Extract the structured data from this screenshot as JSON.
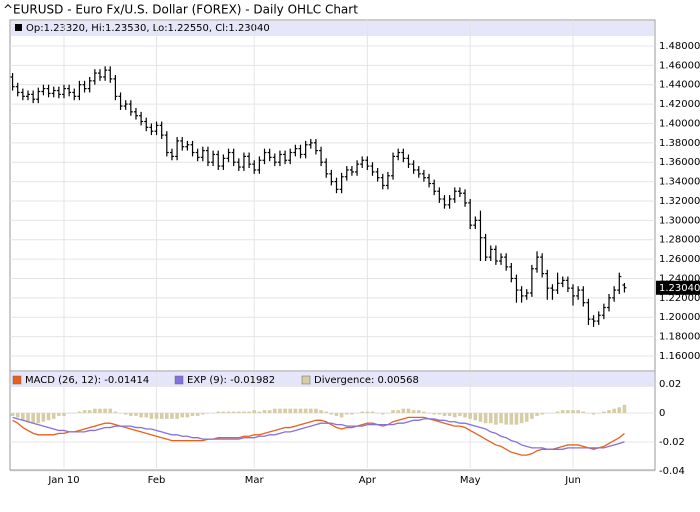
{
  "chart_data": [
    {
      "type": "ohlc",
      "title": "^EURUSD - Euro Fx/U.S. Dollar (FOREX) - Daily OHLC Chart",
      "legend": "Op:1.23320, Hi:1.23530, Lo:1.22550, Cl:1.23040",
      "color": "#000000",
      "grid": true,
      "categories": [
        null,
        null,
        null,
        null,
        null,
        null,
        null,
        null,
        null,
        null,
        "Jan 10",
        null,
        null,
        null,
        null,
        null,
        null,
        null,
        null,
        null,
        null,
        null,
        null,
        null,
        null,
        null,
        null,
        null,
        "Feb",
        null,
        null,
        null,
        null,
        null,
        null,
        null,
        null,
        null,
        null,
        null,
        null,
        null,
        null,
        null,
        null,
        null,
        null,
        "Mar",
        null,
        null,
        null,
        null,
        null,
        null,
        null,
        null,
        null,
        null,
        null,
        null,
        null,
        null,
        null,
        null,
        null,
        null,
        null,
        null,
        null,
        "Apr",
        null,
        null,
        null,
        null,
        null,
        null,
        null,
        null,
        null,
        null,
        null,
        null,
        null,
        null,
        null,
        null,
        null,
        null,
        null,
        "May",
        null,
        null,
        null,
        null,
        null,
        null,
        null,
        null,
        null,
        null,
        null,
        null,
        null,
        null,
        null,
        null,
        null,
        null,
        null,
        "Jun",
        null,
        null,
        null,
        null,
        null,
        null,
        null,
        null,
        null,
        null
      ],
      "open": [
        1.448,
        1.438,
        1.432,
        1.428,
        1.43,
        1.425,
        1.433,
        1.436,
        1.431,
        1.434,
        1.43,
        1.436,
        1.432,
        1.428,
        1.44,
        1.436,
        1.444,
        1.452,
        1.448,
        1.455,
        1.446,
        1.428,
        1.418,
        1.42,
        1.412,
        1.408,
        1.402,
        1.396,
        1.392,
        1.398,
        1.388,
        1.37,
        1.366,
        1.382,
        1.376,
        1.378,
        1.37,
        1.365,
        1.372,
        1.36,
        1.368,
        1.356,
        1.364,
        1.37,
        1.36,
        1.355,
        1.366,
        1.358,
        1.352,
        1.362,
        1.37,
        1.365,
        1.36,
        1.368,
        1.362,
        1.37,
        1.374,
        1.368,
        1.378,
        1.38,
        1.372,
        1.36,
        1.348,
        1.34,
        1.332,
        1.345,
        1.352,
        1.35,
        1.358,
        1.362,
        1.356,
        1.35,
        1.344,
        1.336,
        1.346,
        1.366,
        1.37,
        1.364,
        1.358,
        1.352,
        1.348,
        1.344,
        1.338,
        1.33,
        1.322,
        1.316,
        1.322,
        1.33,
        1.328,
        1.318,
        1.295,
        1.3,
        1.282,
        1.262,
        1.27,
        1.258,
        1.262,
        1.252,
        1.24,
        1.228,
        1.222,
        1.225,
        1.25,
        1.262,
        1.245,
        1.23,
        1.228,
        1.235,
        1.238,
        1.23,
        1.222,
        1.228,
        1.215,
        1.198,
        1.196,
        1.202,
        1.21,
        1.22,
        1.228,
        1.2332
      ],
      "high": [
        1.452,
        1.442,
        1.436,
        1.434,
        1.434,
        1.437,
        1.44,
        1.44,
        1.438,
        1.438,
        1.44,
        1.44,
        1.436,
        1.444,
        1.444,
        1.448,
        1.456,
        1.456,
        1.459,
        1.459,
        1.45,
        1.432,
        1.424,
        1.424,
        1.416,
        1.412,
        1.406,
        1.4,
        1.402,
        1.402,
        1.392,
        1.374,
        1.386,
        1.386,
        1.382,
        1.382,
        1.374,
        1.376,
        1.376,
        1.372,
        1.372,
        1.368,
        1.374,
        1.374,
        1.364,
        1.37,
        1.37,
        1.362,
        1.366,
        1.374,
        1.374,
        1.369,
        1.372,
        1.372,
        1.374,
        1.378,
        1.378,
        1.382,
        1.384,
        1.384,
        1.376,
        1.364,
        1.352,
        1.344,
        1.349,
        1.356,
        1.356,
        1.362,
        1.366,
        1.366,
        1.36,
        1.354,
        1.348,
        1.35,
        1.37,
        1.374,
        1.374,
        1.368,
        1.362,
        1.356,
        1.352,
        1.348,
        1.342,
        1.334,
        1.326,
        1.326,
        1.334,
        1.334,
        1.332,
        1.322,
        1.304,
        1.31,
        1.286,
        1.274,
        1.274,
        1.266,
        1.266,
        1.256,
        1.244,
        1.232,
        1.229,
        1.254,
        1.268,
        1.266,
        1.249,
        1.234,
        1.246,
        1.242,
        1.242,
        1.234,
        1.232,
        1.232,
        1.219,
        1.202,
        1.206,
        1.214,
        1.224,
        1.232,
        1.246,
        1.2353
      ],
      "low": [
        1.434,
        1.428,
        1.424,
        1.424,
        1.421,
        1.421,
        1.429,
        1.427,
        1.427,
        1.426,
        1.426,
        1.428,
        1.424,
        1.424,
        1.432,
        1.432,
        1.44,
        1.444,
        1.444,
        1.442,
        1.424,
        1.414,
        1.414,
        1.408,
        1.404,
        1.398,
        1.392,
        1.388,
        1.388,
        1.384,
        1.366,
        1.362,
        1.362,
        1.372,
        1.372,
        1.366,
        1.361,
        1.361,
        1.356,
        1.356,
        1.352,
        1.352,
        1.36,
        1.356,
        1.351,
        1.351,
        1.354,
        1.348,
        1.348,
        1.358,
        1.361,
        1.356,
        1.356,
        1.358,
        1.358,
        1.366,
        1.364,
        1.364,
        1.374,
        1.368,
        1.356,
        1.344,
        1.336,
        1.328,
        1.328,
        1.341,
        1.346,
        1.346,
        1.354,
        1.352,
        1.346,
        1.34,
        1.332,
        1.332,
        1.342,
        1.362,
        1.36,
        1.354,
        1.348,
        1.344,
        1.34,
        1.334,
        1.326,
        1.318,
        1.312,
        1.312,
        1.318,
        1.324,
        1.314,
        1.291,
        1.291,
        1.258,
        1.258,
        1.258,
        1.254,
        1.254,
        1.248,
        1.236,
        1.215,
        1.215,
        1.218,
        1.221,
        1.246,
        1.241,
        1.218,
        1.218,
        1.224,
        1.231,
        1.226,
        1.212,
        1.218,
        1.211,
        1.192,
        1.19,
        1.192,
        1.198,
        1.206,
        1.216,
        1.224,
        1.2255
      ],
      "close": [
        1.438,
        1.432,
        1.428,
        1.43,
        1.425,
        1.433,
        1.436,
        1.431,
        1.434,
        1.43,
        1.436,
        1.432,
        1.428,
        1.44,
        1.436,
        1.444,
        1.452,
        1.448,
        1.455,
        1.446,
        1.428,
        1.418,
        1.42,
        1.412,
        1.408,
        1.402,
        1.396,
        1.392,
        1.398,
        1.388,
        1.37,
        1.366,
        1.382,
        1.376,
        1.378,
        1.37,
        1.365,
        1.372,
        1.36,
        1.368,
        1.356,
        1.364,
        1.37,
        1.36,
        1.355,
        1.366,
        1.358,
        1.352,
        1.362,
        1.37,
        1.365,
        1.36,
        1.368,
        1.362,
        1.37,
        1.374,
        1.368,
        1.378,
        1.38,
        1.372,
        1.36,
        1.348,
        1.34,
        1.332,
        1.345,
        1.352,
        1.35,
        1.358,
        1.362,
        1.356,
        1.35,
        1.344,
        1.336,
        1.346,
        1.366,
        1.37,
        1.364,
        1.358,
        1.352,
        1.348,
        1.344,
        1.338,
        1.33,
        1.322,
        1.316,
        1.322,
        1.33,
        1.328,
        1.318,
        1.295,
        1.3,
        1.282,
        1.262,
        1.27,
        1.258,
        1.262,
        1.252,
        1.24,
        1.228,
        1.222,
        1.225,
        1.25,
        1.262,
        1.245,
        1.23,
        1.228,
        1.235,
        1.238,
        1.23,
        1.222,
        1.228,
        1.215,
        1.198,
        1.196,
        1.202,
        1.21,
        1.22,
        1.228,
        1.242,
        1.2304
      ],
      "last_price": {
        "value": 1.2304,
        "label": "1.23040"
      },
      "ylim": [
        1.1455,
        1.5068
      ],
      "yticks": [
        {
          "value": 1.48,
          "label": "1.48000"
        },
        {
          "value": 1.46,
          "label": "1.46000"
        },
        {
          "value": 1.44,
          "label": "1.44000"
        },
        {
          "value": 1.42,
          "label": "1.42000"
        },
        {
          "value": 1.4,
          "label": "1.40000"
        },
        {
          "value": 1.38,
          "label": "1.38000"
        },
        {
          "value": 1.36,
          "label": "1.36000"
        },
        {
          "value": 1.34,
          "label": "1.34000"
        },
        {
          "value": 1.32,
          "label": "1.32000"
        },
        {
          "value": 1.3,
          "label": "1.30000"
        },
        {
          "value": 1.28,
          "label": "1.28000"
        },
        {
          "value": 1.26,
          "label": "1.26000"
        },
        {
          "value": 1.24,
          "label": "1.24000"
        },
        {
          "value": 1.22,
          "label": "1.22000"
        },
        {
          "value": 1.2,
          "label": "1.20000"
        },
        {
          "value": 1.18,
          "label": "1.18000"
        },
        {
          "value": 1.16,
          "label": "1.16000"
        }
      ]
    },
    {
      "type": "macd",
      "grid": true,
      "ylim": [
        -0.0379,
        0.0283
      ],
      "yticks": [
        0.02,
        0,
        -0.02,
        -0.04
      ],
      "series": [
        {
          "name": "MACD (26, 12): -0.01414",
          "color": "#e8601c",
          "kind": "line",
          "values": [
            -0.005,
            -0.007,
            -0.01,
            -0.012,
            -0.014,
            -0.015,
            -0.015,
            -0.015,
            -0.015,
            -0.014,
            -0.014,
            -0.013,
            -0.013,
            -0.012,
            -0.011,
            -0.01,
            -0.009,
            -0.008,
            -0.007,
            -0.007,
            -0.008,
            -0.009,
            -0.01,
            -0.011,
            -0.012,
            -0.013,
            -0.014,
            -0.015,
            -0.016,
            -0.017,
            -0.018,
            -0.019,
            -0.019,
            -0.019,
            -0.019,
            -0.019,
            -0.019,
            -0.019,
            -0.018,
            -0.018,
            -0.017,
            -0.017,
            -0.017,
            -0.017,
            -0.017,
            -0.016,
            -0.016,
            -0.015,
            -0.015,
            -0.014,
            -0.013,
            -0.012,
            -0.011,
            -0.01,
            -0.01,
            -0.009,
            -0.008,
            -0.007,
            -0.006,
            -0.005,
            -0.005,
            -0.006,
            -0.008,
            -0.01,
            -0.011,
            -0.01,
            -0.01,
            -0.009,
            -0.008,
            -0.007,
            -0.007,
            -0.008,
            -0.009,
            -0.008,
            -0.006,
            -0.005,
            -0.004,
            -0.003,
            -0.003,
            -0.003,
            -0.003,
            -0.004,
            -0.005,
            -0.006,
            -0.007,
            -0.008,
            -0.009,
            -0.009,
            -0.01,
            -0.012,
            -0.014,
            -0.016,
            -0.018,
            -0.02,
            -0.022,
            -0.023,
            -0.025,
            -0.027,
            -0.028,
            -0.029,
            -0.029,
            -0.028,
            -0.026,
            -0.025,
            -0.025,
            -0.025,
            -0.024,
            -0.023,
            -0.022,
            -0.022,
            -0.022,
            -0.023,
            -0.024,
            -0.025,
            -0.024,
            -0.023,
            -0.021,
            -0.019,
            -0.017,
            -0.01414
          ]
        },
        {
          "name": "EXP (9): -0.01982",
          "color": "#8470e0",
          "kind": "line",
          "values": [
            -0.003,
            -0.004,
            -0.005,
            -0.006,
            -0.007,
            -0.008,
            -0.009,
            -0.01,
            -0.011,
            -0.012,
            -0.012,
            -0.013,
            -0.013,
            -0.013,
            -0.013,
            -0.012,
            -0.012,
            -0.011,
            -0.01,
            -0.01,
            -0.009,
            -0.009,
            -0.009,
            -0.009,
            -0.01,
            -0.01,
            -0.011,
            -0.011,
            -0.012,
            -0.013,
            -0.014,
            -0.015,
            -0.015,
            -0.016,
            -0.016,
            -0.017,
            -0.017,
            -0.018,
            -0.018,
            -0.018,
            -0.018,
            -0.018,
            -0.018,
            -0.018,
            -0.018,
            -0.017,
            -0.017,
            -0.017,
            -0.016,
            -0.016,
            -0.015,
            -0.015,
            -0.014,
            -0.013,
            -0.013,
            -0.012,
            -0.011,
            -0.01,
            -0.009,
            -0.008,
            -0.007,
            -0.007,
            -0.007,
            -0.008,
            -0.008,
            -0.009,
            -0.009,
            -0.009,
            -0.009,
            -0.008,
            -0.008,
            -0.008,
            -0.008,
            -0.008,
            -0.008,
            -0.007,
            -0.007,
            -0.006,
            -0.005,
            -0.005,
            -0.004,
            -0.004,
            -0.004,
            -0.005,
            -0.005,
            -0.006,
            -0.006,
            -0.007,
            -0.007,
            -0.008,
            -0.009,
            -0.01,
            -0.011,
            -0.013,
            -0.014,
            -0.016,
            -0.017,
            -0.019,
            -0.02,
            -0.022,
            -0.023,
            -0.024,
            -0.024,
            -0.024,
            -0.025,
            -0.025,
            -0.025,
            -0.025,
            -0.024,
            -0.024,
            -0.024,
            -0.024,
            -0.024,
            -0.024,
            -0.024,
            -0.024,
            -0.023,
            -0.022,
            -0.021,
            -0.01982
          ]
        },
        {
          "name": "Divergence: 0.00568",
          "color": "#d6cda6",
          "kind": "histogram",
          "values": [
            -0.002,
            -0.003,
            -0.005,
            -0.006,
            -0.007,
            -0.007,
            -0.006,
            -0.005,
            -0.004,
            -0.002,
            -0.002,
            0,
            0,
            0.001,
            0.002,
            0.002,
            0.003,
            0.003,
            0.003,
            0.003,
            0.001,
            0,
            -0.001,
            -0.002,
            -0.002,
            -0.003,
            -0.003,
            -0.004,
            -0.004,
            -0.004,
            -0.004,
            -0.004,
            -0.004,
            -0.003,
            -0.003,
            -0.002,
            -0.002,
            -0.001,
            0,
            0,
            0.001,
            0.001,
            0.001,
            0.001,
            0.001,
            0.001,
            0.001,
            0.002,
            0.001,
            0.002,
            0.002,
            0.003,
            0.003,
            0.003,
            0.003,
            0.003,
            0.003,
            0.003,
            0.003,
            0.003,
            0.002,
            0.001,
            -0.001,
            -0.002,
            -0.003,
            -0.001,
            -0.001,
            0,
            0.001,
            0.001,
            0.001,
            0,
            -0.001,
            0,
            0.002,
            0.002,
            0.003,
            0.003,
            0.002,
            0.002,
            0.001,
            0,
            -0.001,
            -0.001,
            -0.002,
            -0.002,
            -0.003,
            -0.002,
            -0.003,
            -0.004,
            -0.005,
            -0.006,
            -0.007,
            -0.007,
            -0.008,
            -0.007,
            -0.008,
            -0.008,
            -0.008,
            -0.007,
            -0.006,
            -0.004,
            -0.002,
            -0.001,
            0,
            0,
            0.001,
            0.002,
            0.002,
            0.002,
            0.002,
            0.001,
            0,
            -0.001,
            0,
            0.001,
            0.002,
            0.003,
            0.004,
            0.00568
          ]
        }
      ]
    }
  ]
}
